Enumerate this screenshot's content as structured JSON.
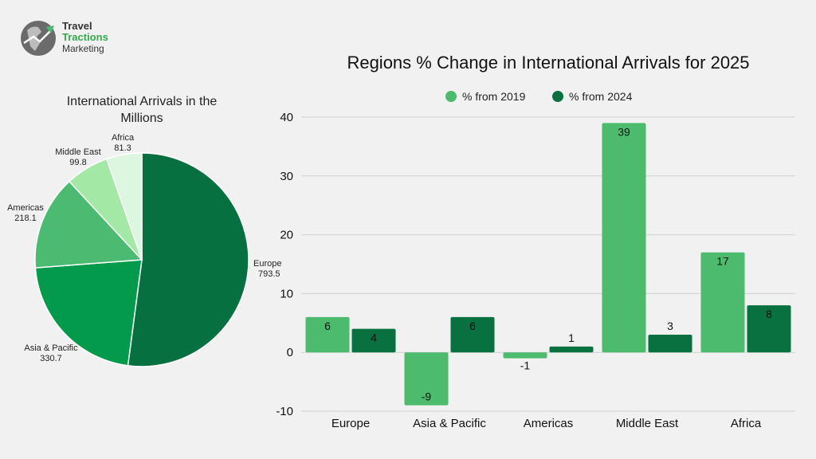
{
  "logo": {
    "line1": "Travel",
    "line2": "Tractions",
    "line3": "Marketing"
  },
  "chart_data": [
    {
      "type": "pie",
      "title": "International Arrivals in the Millions",
      "title_lines": [
        "International Arrivals in the",
        "Millions"
      ],
      "slices": [
        {
          "label": "Europe",
          "value": 793.5,
          "value_label": "793.5",
          "color": "#077040"
        },
        {
          "label": "Asia & Pacific",
          "value": 330.7,
          "value_label": "330.7",
          "color": "#039a4b"
        },
        {
          "label": "Americas",
          "value": 218.1,
          "value_label": "218.1",
          "color": "#4cbb72"
        },
        {
          "label": "Middle East",
          "value": 99.8,
          "value_label": "99.8",
          "color": "#a4e8a6"
        },
        {
          "label": "Africa",
          "value": 81.3,
          "value_label": "81.3",
          "color": "#dcf6df"
        }
      ]
    },
    {
      "type": "bar",
      "title": "Regions % Change in International Arrivals for 2025",
      "categories": [
        "Europe",
        "Asia & Pacific",
        "Americas",
        "Middle East",
        "Africa"
      ],
      "series": [
        {
          "name": "% from 2019",
          "color": "#4cbb6e",
          "values": [
            6,
            -9,
            -1,
            39,
            17
          ]
        },
        {
          "name": "% from 2024",
          "color": "#08713f",
          "values": [
            4,
            6,
            1,
            3,
            8
          ]
        }
      ],
      "ylim": [
        -10,
        40
      ],
      "yticks": [
        -10,
        0,
        10,
        20,
        30,
        40
      ],
      "grid": true,
      "legend": "top"
    }
  ]
}
